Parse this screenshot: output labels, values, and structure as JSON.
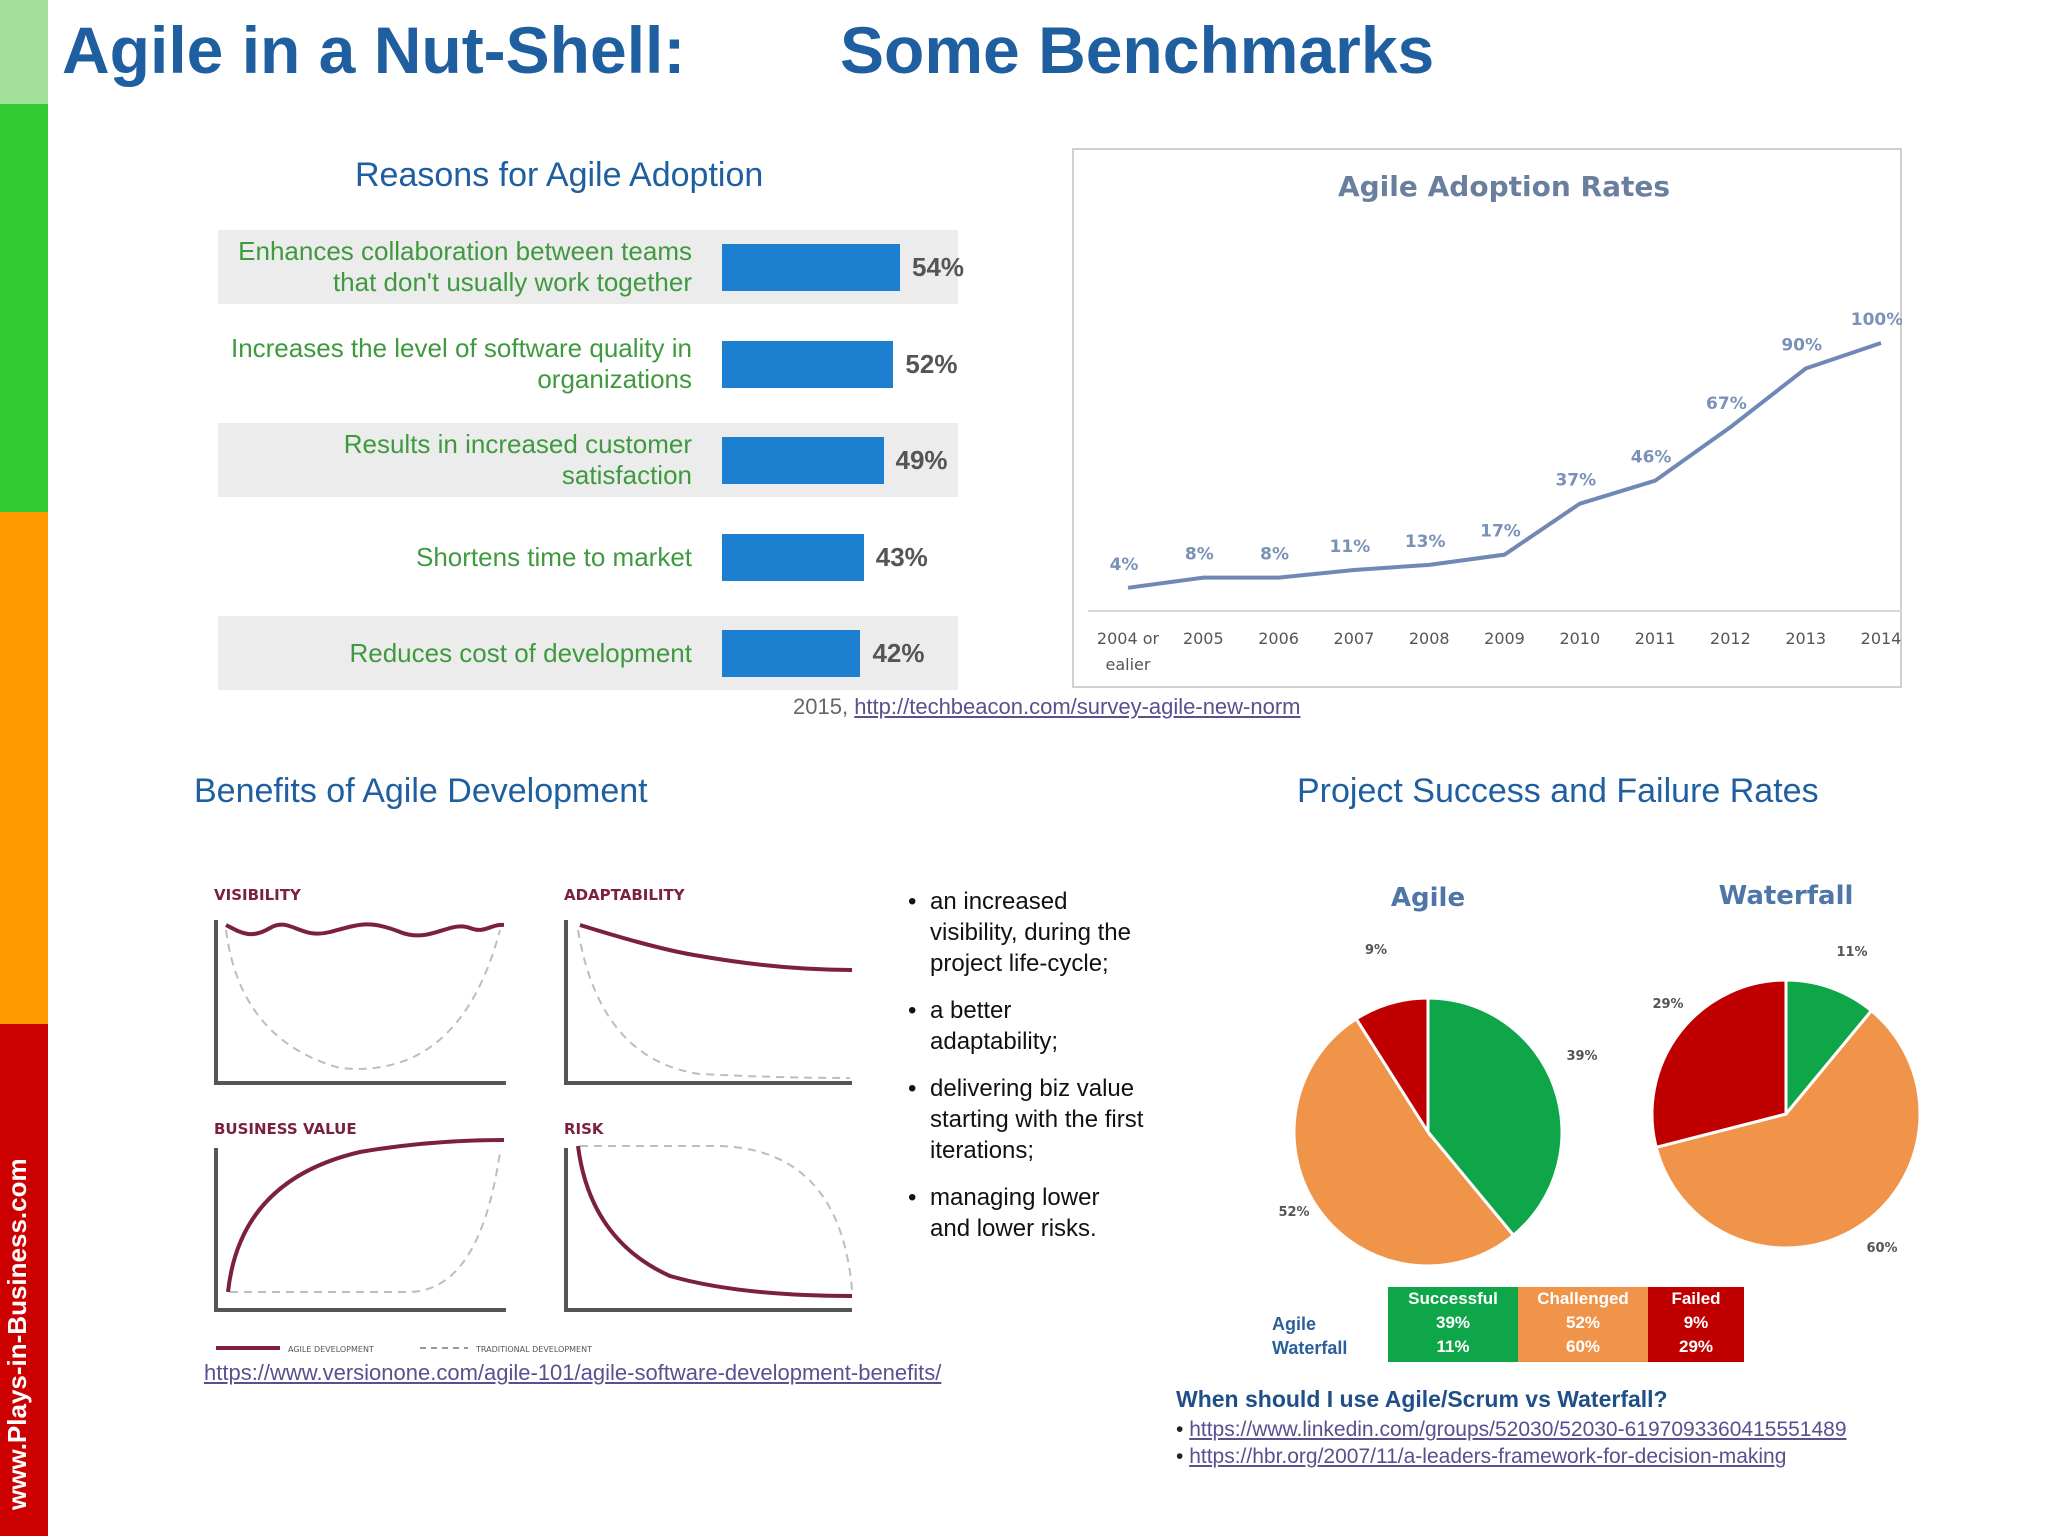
{
  "header": {
    "title_left": "Agile in a Nut-Shell:",
    "title_right": "Some Benchmarks"
  },
  "sidebar": {
    "url": "www.Plays-in-Business.com",
    "colors": [
      "#a3e19a",
      "#33cc33",
      "#ff9900",
      "#cc0000"
    ]
  },
  "reasons": {
    "title": "Reasons for Agile Adoption",
    "items": [
      {
        "label": "Enhances collaboration between teams that don't usually work together",
        "value": "54%"
      },
      {
        "label": "Increases the level of software quality in organizations",
        "value": "52%"
      },
      {
        "label": "Results in increased customer satisfaction",
        "value": "49%"
      },
      {
        "label": "Shortens time to market",
        "value": "43%"
      },
      {
        "label": "Reduces cost of development",
        "value": "42%"
      }
    ],
    "source_prefix": "2015,",
    "source_link": "http://techbeacon.com/survey-agile-new-norm"
  },
  "benefits": {
    "title": "Benefits of Agile Development",
    "panels": [
      "VISIBILITY",
      "ADAPTABILITY",
      "BUSINESS VALUE",
      "RISK"
    ],
    "legend_agile": "AGILE DEVELOPMENT",
    "legend_traditional": "TRADITIONAL DEVELOPMENT",
    "bullets": [
      "an increased visibility, during the project life-cycle;",
      "a better adaptability;",
      "delivering biz value starting with the first iterations;",
      "managing lower and lower risks."
    ],
    "source_link": "https://www.versionone.com/agile-101/agile-software-development-benefits/"
  },
  "success": {
    "title": "Project Success and Failure Rates",
    "row_labels": [
      "Agile",
      "Waterfall"
    ],
    "columns": [
      {
        "name": "Successful",
        "agile": "39%",
        "waterfall": "11%",
        "color": "#0fa64a"
      },
      {
        "name": "Challenged",
        "agile": "52%",
        "waterfall": "60%",
        "color": "#f0944a"
      },
      {
        "name": "Failed",
        "agile": "9%",
        "waterfall": "29%",
        "color": "#c00000"
      }
    ],
    "question": "When should I use Agile/Scrum vs Waterfall?",
    "links": [
      "https://www.linkedin.com/groups/52030/52030-6197093360415551489",
      "https://hbr.org/2007/11/a-leaders-framework-for-decision-making"
    ]
  },
  "chart_data": [
    {
      "type": "bar",
      "title": "Reasons for Agile Adoption",
      "categories": [
        "Enhances collaboration between teams that don't usually work together",
        "Increases the level of software quality in organizations",
        "Results in increased customer satisfaction",
        "Shortens time to market",
        "Reduces cost of development"
      ],
      "values": [
        54,
        52,
        49,
        43,
        42
      ],
      "orientation": "horizontal",
      "unit": "%",
      "color": "#1d7fd0"
    },
    {
      "type": "line",
      "title": "Agile Adoption Rates",
      "x": [
        "2004 or ealier",
        "2005",
        "2006",
        "2007",
        "2008",
        "2009",
        "2010",
        "2011",
        "2012",
        "2013",
        "2014"
      ],
      "y": [
        4,
        8,
        8,
        11,
        13,
        17,
        37,
        46,
        67,
        90,
        100
      ],
      "labels": [
        "4%",
        "8%",
        "8%",
        "11%",
        "13%",
        "17%",
        "37%",
        "46%",
        "67%",
        "90%",
        "100%"
      ],
      "ylim": [
        0,
        110
      ],
      "color": "#7088b5",
      "grid": false
    },
    {
      "type": "line",
      "title": "",
      "panels": [
        "VISIBILITY",
        "ADAPTABILITY",
        "BUSINESS VALUE",
        "RISK"
      ],
      "series": [
        {
          "name": "AGILE DEVELOPMENT"
        },
        {
          "name": "TRADITIONAL DEVELOPMENT"
        }
      ],
      "colors": {
        "agile": "#7b2040",
        "traditional": "#b5b5b5"
      }
    },
    {
      "type": "pie",
      "title": "Agile",
      "categories": [
        "Successful",
        "Challenged",
        "Failed"
      ],
      "values": [
        39,
        52,
        9
      ],
      "labels": [
        "39%",
        "52%",
        "9%"
      ],
      "colors": [
        "#0fa64a",
        "#f0944a",
        "#c00000"
      ]
    },
    {
      "type": "pie",
      "title": "Waterfall",
      "categories": [
        "Successful",
        "Challenged",
        "Failed"
      ],
      "values": [
        11,
        60,
        29
      ],
      "labels": [
        "11%",
        "60%",
        "29%"
      ],
      "colors": [
        "#0fa64a",
        "#f0944a",
        "#c00000"
      ]
    }
  ]
}
